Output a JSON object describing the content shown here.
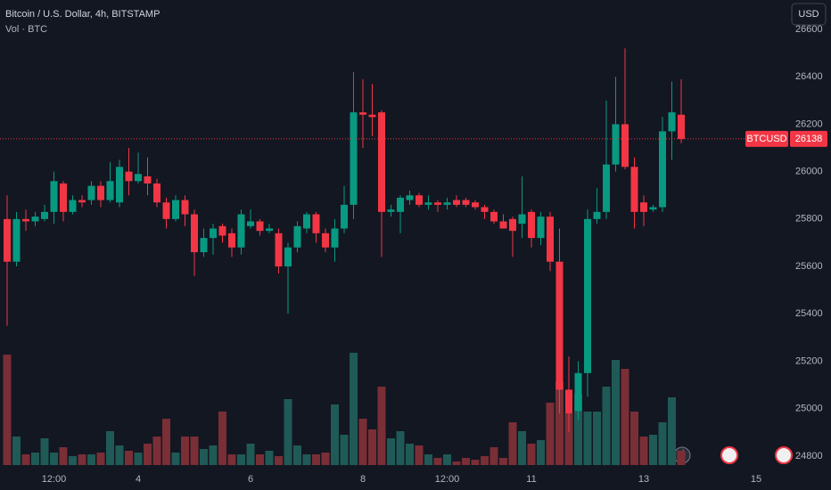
{
  "chart_data": {
    "type": "candlestick",
    "title": "Bitcoin / U.S. Dollar, 4h, BITSTAMP",
    "volume_label": "Vol · BTC",
    "currency": "USD",
    "symbol": "BTCUSD",
    "categories": [
      null,
      null,
      null,
      null,
      null,
      "12:00",
      null,
      null,
      null,
      null,
      null,
      null,
      null,
      null,
      "4",
      null,
      null,
      null,
      null,
      null,
      null,
      null,
      null,
      null,
      null,
      null,
      "6",
      null,
      null,
      null,
      null,
      null,
      null,
      null,
      null,
      null,
      null,
      null,
      "8",
      null,
      null,
      null,
      null,
      null,
      null,
      null,
      null,
      "12:00",
      null,
      null,
      null,
      null,
      null,
      null,
      null,
      null,
      "11",
      null,
      null,
      null,
      null,
      null,
      null,
      null,
      null,
      null,
      null,
      null,
      "13",
      null,
      null,
      null,
      null,
      null,
      null,
      null,
      null,
      null,
      null,
      null,
      "15",
      null,
      null,
      null
    ],
    "open": [
      25800,
      25620,
      25800,
      25790,
      25800,
      25830,
      25950,
      25830,
      25880,
      25880,
      25940,
      25880,
      25870,
      26000,
      25960,
      25980,
      25950,
      25870,
      25800,
      25880,
      25820,
      25660,
      25720,
      25770,
      25740,
      25680,
      25770,
      25790,
      25750,
      25740,
      25600,
      25680,
      25760,
      25820,
      25740,
      25680,
      25760,
      25860,
      26250,
      26240,
      26250,
      25830,
      25830,
      25880,
      25900,
      25860,
      25870,
      25860,
      25880,
      25880,
      25870,
      25850,
      25830,
      25790,
      25800,
      25780,
      25830,
      25720,
      25810,
      25620,
      25080,
      24990,
      25150,
      25800,
      25830,
      26030,
      26200,
      26020,
      25870,
      25840,
      25850,
      26170,
      26240,
      null,
      null,
      null,
      null,
      null,
      null,
      null,
      null,
      null,
      null,
      null
    ],
    "high": [
      25900,
      25830,
      25840,
      25830,
      25860,
      26000,
      25960,
      25900,
      25900,
      25960,
      25960,
      26040,
      26050,
      26100,
      26080,
      26060,
      25970,
      25890,
      25900,
      25900,
      25840,
      25760,
      25780,
      25780,
      25760,
      25840,
      25840,
      25800,
      25780,
      25760,
      25700,
      25790,
      25830,
      25830,
      25760,
      25800,
      25940,
      26420,
      26390,
      26370,
      26260,
      25860,
      25900,
      25920,
      25910,
      25900,
      25880,
      25890,
      25900,
      25890,
      25880,
      25860,
      25840,
      25820,
      25810,
      25980,
      25840,
      25830,
      25830,
      25760,
      25220,
      25200,
      25840,
      25930,
      26300,
      26400,
      26520,
      26060,
      25900,
      25860,
      26230,
      26380,
      26390,
      null,
      null,
      null,
      null,
      null,
      null,
      null,
      null,
      null,
      null,
      null
    ],
    "low": [
      25350,
      25600,
      25750,
      25770,
      25790,
      25780,
      25790,
      25820,
      25850,
      25860,
      25850,
      25870,
      25850,
      25900,
      25950,
      25900,
      25850,
      25760,
      25790,
      25770,
      25560,
      25640,
      25650,
      25700,
      25640,
      25650,
      25760,
      25730,
      25740,
      25570,
      25400,
      25660,
      25740,
      25700,
      25660,
      25620,
      25740,
      25800,
      26100,
      26150,
      25640,
      25810,
      25740,
      25860,
      25850,
      25840,
      25830,
      25840,
      25850,
      25850,
      25840,
      25800,
      25780,
      25760,
      25640,
      25720,
      25680,
      25690,
      25580,
      24980,
      24900,
      24950,
      25050,
      25780,
      25800,
      26000,
      26010,
      25760,
      25770,
      25830,
      25830,
      26050,
      26120,
      null,
      null,
      null,
      null,
      null,
      null,
      null,
      null,
      null,
      null,
      null
    ],
    "close": [
      25620,
      25800,
      25790,
      25810,
      25830,
      25960,
      25830,
      25880,
      25870,
      25940,
      25880,
      25960,
      26020,
      25960,
      25990,
      25950,
      25870,
      25800,
      25880,
      25820,
      25660,
      25720,
      25760,
      25730,
      25680,
      25820,
      25790,
      25750,
      25760,
      25600,
      25680,
      25770,
      25820,
      25740,
      25680,
      25760,
      25860,
      26250,
      26240,
      26230,
      25830,
      25840,
      25890,
      25900,
      25860,
      25870,
      25860,
      25870,
      25860,
      25860,
      25850,
      25830,
      25790,
      25760,
      25750,
      25820,
      25720,
      25810,
      25620,
      25080,
      24980,
      25150,
      25800,
      25830,
      26030,
      26200,
      26020,
      25830,
      25830,
      25850,
      26170,
      26250,
      26138,
      null,
      null,
      null,
      null,
      null,
      null,
      null,
      null,
      null,
      null,
      null
    ],
    "volume": [
      124,
      32,
      12,
      14,
      30,
      14,
      20,
      10,
      12,
      12,
      14,
      38,
      22,
      16,
      14,
      24,
      32,
      52,
      14,
      32,
      32,
      18,
      22,
      60,
      12,
      12,
      24,
      12,
      16,
      10,
      74,
      22,
      12,
      12,
      14,
      68,
      34,
      126,
      52,
      40,
      88,
      30,
      38,
      24,
      22,
      12,
      8,
      12,
      4,
      8,
      6,
      10,
      20,
      8,
      48,
      38,
      24,
      28,
      70,
      94,
      58,
      80,
      60,
      60,
      88,
      118,
      108,
      60,
      32,
      34,
      48,
      76,
      16,
      null,
      null,
      null,
      null,
      null,
      null,
      null,
      null,
      null,
      null,
      null
    ],
    "up_color": "#089981",
    "down_color": "#f23645",
    "volume_up_color": "#1f5a56",
    "volume_down_color": "#7a2e36",
    "ylim": [
      24732,
      26724
    ],
    "yticks": [
      24800,
      25000,
      25200,
      25400,
      25600,
      25800,
      26000,
      26200,
      26400,
      26600
    ],
    "grid": false
  }
}
